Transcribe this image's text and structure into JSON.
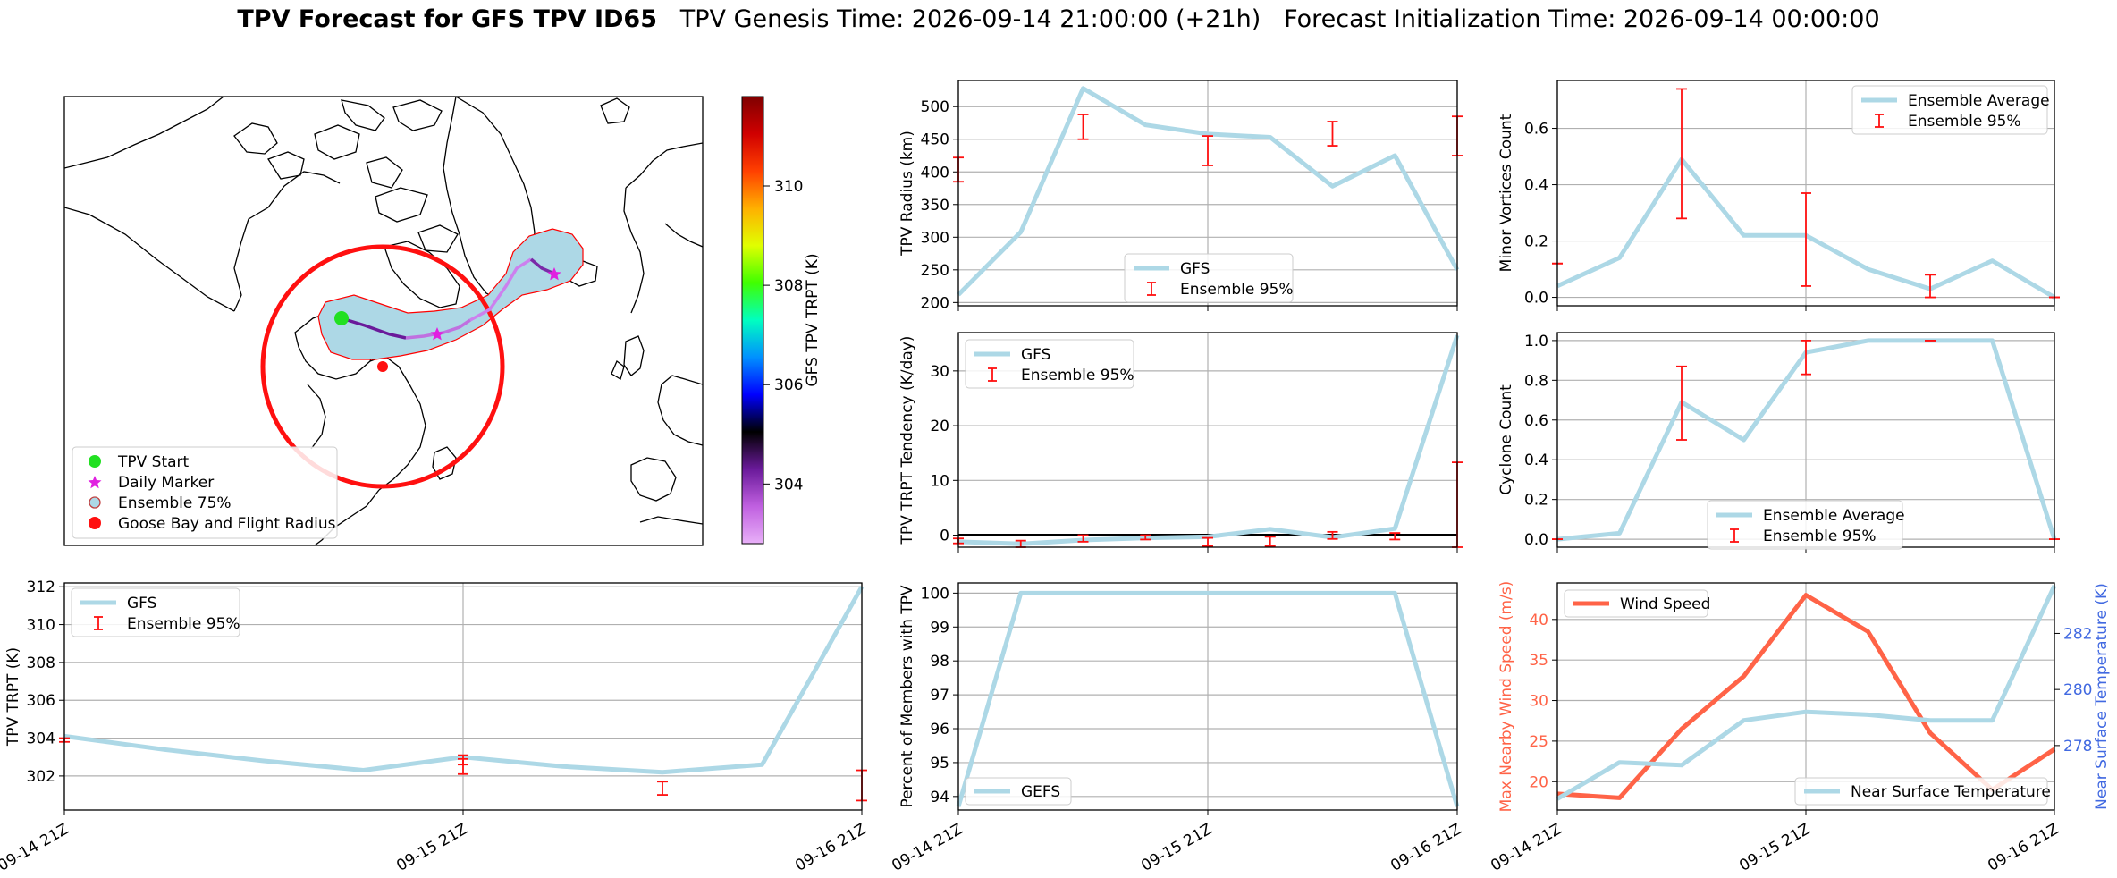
{
  "title": {
    "bold": "TPV Forecast for GFS TPV ID65",
    "genesis": "TPV Genesis Time: 2026-09-14 21:00:00 (+21h)",
    "init": "Forecast Initialization Time: 2026-09-14 00:00:00"
  },
  "map": {
    "colorbar": {
      "label": "GFS TPV TRPT (K)",
      "range": [
        302.8,
        311.8
      ],
      "ticks": [
        304,
        306,
        308,
        310
      ],
      "colors": [
        "#e8b0f8",
        "#c060e0",
        "#6a1a9a",
        "#000000",
        "#0000ff",
        "#0090ff",
        "#00ffc0",
        "#40ff00",
        "#e0ff00",
        "#ffb000",
        "#ff4000",
        "#d00000",
        "#800000"
      ]
    },
    "legend": [
      {
        "label": "TPV Start",
        "marker": "circle",
        "color": "#22e022"
      },
      {
        "label": "Daily Marker",
        "marker": "star",
        "color": "#e020e0"
      },
      {
        "label": "Ensemble 75%",
        "marker": "circle",
        "color": "#ADD8E6"
      },
      {
        "label": "Goose Bay and Flight Radius",
        "marker": "circle",
        "color": "#ff0000"
      }
    ]
  },
  "chart_data": [
    {
      "id": "radius",
      "type": "line",
      "ylabel": "TPV Radius (km)",
      "x": [
        0,
        0.25,
        0.5,
        0.75,
        1.0,
        1.25,
        1.5,
        1.75,
        2.0
      ],
      "xlim": [
        0,
        2
      ],
      "ylim": [
        195,
        540
      ],
      "yticks": [
        200,
        250,
        300,
        350,
        400,
        450,
        500
      ],
      "series": [
        {
          "name": "GFS",
          "color": "#ADD8E6",
          "values": [
            212,
            308,
            528,
            472,
            458,
            453,
            378,
            425,
            250
          ]
        }
      ],
      "errorbars": {
        "name": "Ensemble 95%",
        "x": [
          0,
          0.5,
          1.0,
          1.5,
          2.0
        ],
        "low": [
          385,
          450,
          410,
          440,
          425
        ],
        "high": [
          422,
          488,
          455,
          477,
          485
        ]
      },
      "legend": "bottom-center"
    },
    {
      "id": "minor",
      "type": "line",
      "ylabel": "Minor Vortices Count",
      "x": [
        0,
        0.25,
        0.5,
        0.75,
        1.0,
        1.25,
        1.5,
        1.75,
        2.0
      ],
      "xlim": [
        0,
        2
      ],
      "ylim": [
        -0.03,
        0.77
      ],
      "yticks": [
        0.0,
        0.2,
        0.4,
        0.6
      ],
      "series": [
        {
          "name": "Ensemble Average",
          "color": "#ADD8E6",
          "values": [
            0.04,
            0.14,
            0.49,
            0.22,
            0.22,
            0.1,
            0.03,
            0.13,
            0.0
          ]
        }
      ],
      "errorbars": {
        "name": "Ensemble 95%",
        "x": [
          0,
          0.5,
          1.0,
          1.5,
          2.0
        ],
        "low": [
          0.12,
          0.28,
          0.04,
          0.0,
          0.0
        ],
        "high": [
          0.12,
          0.74,
          0.37,
          0.08,
          0.0
        ]
      },
      "legend": "top-right"
    },
    {
      "id": "tendency",
      "type": "line",
      "ylabel": "TPV TRPT Tendency (K/day)",
      "x": [
        0,
        0.25,
        0.5,
        0.75,
        1.0,
        1.25,
        1.5,
        1.75,
        2.0
      ],
      "xlim": [
        0,
        2
      ],
      "ylim": [
        -2.2,
        37
      ],
      "yticks": [
        0,
        10,
        20,
        30
      ],
      "series": [
        {
          "name": "GFS",
          "color": "#ADD8E6",
          "values": [
            -1.2,
            -1.6,
            -0.9,
            -0.5,
            -0.3,
            1.1,
            -0.4,
            1.2,
            36.5
          ]
        }
      ],
      "errorbars": {
        "name": "Ensemble 95%",
        "x": [
          0,
          0.25,
          0.5,
          0.75,
          1.0,
          1.25,
          1.5,
          1.75,
          2.0
        ],
        "low": [
          -1.5,
          -2.2,
          -1.2,
          -0.8,
          -2.0,
          -2.0,
          -0.7,
          -0.8,
          -2.2
        ],
        "high": [
          -0.6,
          -1.0,
          0.0,
          0.0,
          -0.5,
          -0.3,
          0.6,
          0.4,
          13.3
        ]
      },
      "zero_line": true,
      "legend": "top-left"
    },
    {
      "id": "cyclone",
      "type": "line",
      "ylabel": "Cyclone Count",
      "x": [
        0,
        0.25,
        0.5,
        0.75,
        1.0,
        1.25,
        1.5,
        1.75,
        2.0
      ],
      "xlim": [
        0,
        2
      ],
      "ylim": [
        -0.04,
        1.04
      ],
      "yticks": [
        0.0,
        0.2,
        0.4,
        0.6,
        0.8,
        1.0
      ],
      "series": [
        {
          "name": "Ensemble Average",
          "color": "#ADD8E6",
          "values": [
            0.0,
            0.03,
            0.69,
            0.5,
            0.94,
            1.0,
            1.0,
            1.0,
            0.0
          ]
        }
      ],
      "errorbars": {
        "name": "Ensemble 95%",
        "x": [
          0,
          0.5,
          1.0,
          1.5,
          2.0
        ],
        "low": [
          0.0,
          0.5,
          0.83,
          1.0,
          0.0
        ],
        "high": [
          0.0,
          0.87,
          1.0,
          1.0,
          0.0
        ]
      },
      "legend": "bottom-center"
    },
    {
      "id": "trpt",
      "type": "line",
      "ylabel": "TPV TRPT (K)",
      "x": [
        0,
        0.25,
        0.5,
        0.75,
        1.0,
        1.25,
        1.5,
        1.75,
        2.0
      ],
      "xlim": [
        0,
        2
      ],
      "ylim": [
        300.2,
        312.2
      ],
      "yticks": [
        302,
        304,
        306,
        308,
        310,
        312
      ],
      "xticks": [
        "09-14 21Z",
        "09-15 21Z",
        "09-16 21Z"
      ],
      "series": [
        {
          "name": "GFS",
          "color": "#ADD8E6",
          "values": [
            304.1,
            303.4,
            302.8,
            302.3,
            303.0,
            302.5,
            302.2,
            302.6,
            312.0
          ]
        }
      ],
      "errorbars": {
        "name": "Ensemble 95%",
        "x": [
          0,
          1.0,
          1.5,
          2.0
        ],
        "low": [
          303.8,
          302.6,
          301.0,
          300.7
        ],
        "high": [
          304.0,
          303.1,
          301.7,
          302.3
        ],
        "extra": {
          "x": 1.0,
          "low": 302.1,
          "high": 302.9
        }
      },
      "legend": "top-left"
    },
    {
      "id": "members",
      "type": "line",
      "ylabel": "Percent of Members with TPV",
      "x": [
        0,
        0.25,
        0.5,
        0.75,
        1.0,
        1.25,
        1.5,
        1.75,
        2.0
      ],
      "xlim": [
        0,
        2
      ],
      "ylim": [
        93.6,
        100.3
      ],
      "yticks": [
        94,
        95,
        96,
        97,
        98,
        99,
        100
      ],
      "xticks": [
        "09-14 21Z",
        "09-15 21Z",
        "09-16 21Z"
      ],
      "series": [
        {
          "name": "GEFS",
          "color": "#ADD8E6",
          "values": [
            93.7,
            100,
            100,
            100,
            100,
            100,
            100,
            100,
            93.7
          ]
        }
      ],
      "legend": "bottom-left"
    },
    {
      "id": "wind",
      "type": "line",
      "ylabel": "Max Nearby Wind Speed (m/s)",
      "y2label": "Near Surface Temperature (K)",
      "x": [
        0,
        0.25,
        0.5,
        0.75,
        1.0,
        1.25,
        1.5,
        1.75,
        2.0
      ],
      "xlim": [
        0,
        2
      ],
      "ylim": [
        16.5,
        44.5
      ],
      "y2lim": [
        275.7,
        283.8
      ],
      "yticks": [
        20,
        25,
        30,
        35,
        40
      ],
      "y2ticks": [
        278,
        280,
        282
      ],
      "xticks": [
        "09-14 21Z",
        "09-15 21Z",
        "09-16 21Z"
      ],
      "series": [
        {
          "name": "Wind Speed",
          "color": "#ff6347",
          "axis": "left",
          "values": [
            18.5,
            18.0,
            26.5,
            33.0,
            43.0,
            38.5,
            26.0,
            19.0,
            24.0
          ]
        },
        {
          "name": "Near Surface Temperature",
          "color": "#ADD8E6",
          "axis": "right",
          "values": [
            276.1,
            277.4,
            277.3,
            278.9,
            279.2,
            279.1,
            278.9,
            278.9,
            283.7
          ]
        }
      ],
      "legend": "top-left / bottom-right"
    }
  ]
}
